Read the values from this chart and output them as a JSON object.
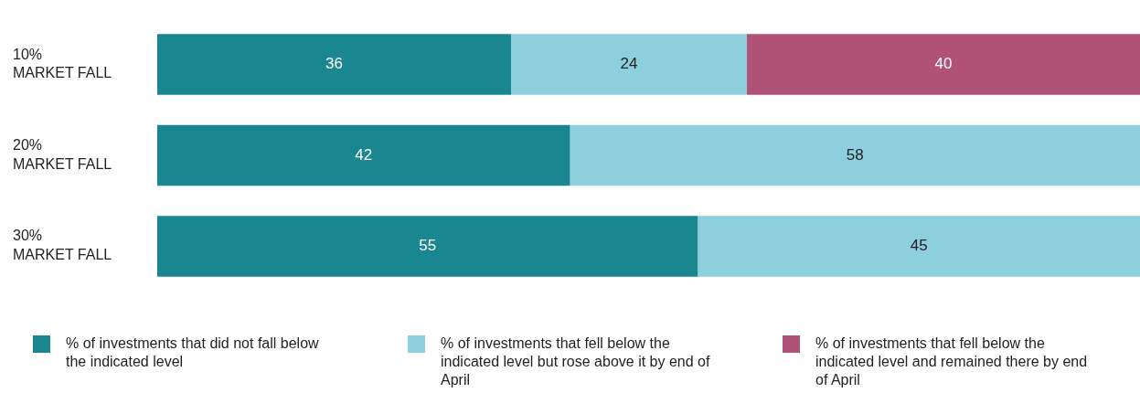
{
  "chart_data": {
    "type": "bar",
    "orientation": "horizontal",
    "stacked": true,
    "categories": [
      "10%\nMARKET FALL",
      "20%\nMARKET FALL",
      "30%\nMARKET FALL"
    ],
    "series": [
      {
        "name": "% of investments that did not fall below the indicated level",
        "color": "#1a8790",
        "values": [
          36,
          42,
          55
        ]
      },
      {
        "name": "% of investments that fell below the indicated level but rose above it by end of April",
        "color": "#8ecfdd",
        "values": [
          24,
          58,
          45
        ]
      },
      {
        "name": "% of investments that fell below the indicated level and remained there by end of April",
        "color": "#b05275",
        "values": [
          40,
          null,
          null
        ]
      }
    ],
    "xlim": [
      0,
      100
    ],
    "data_labels": true,
    "legend": "bottom",
    "grid": false,
    "tick_labels": "y"
  }
}
